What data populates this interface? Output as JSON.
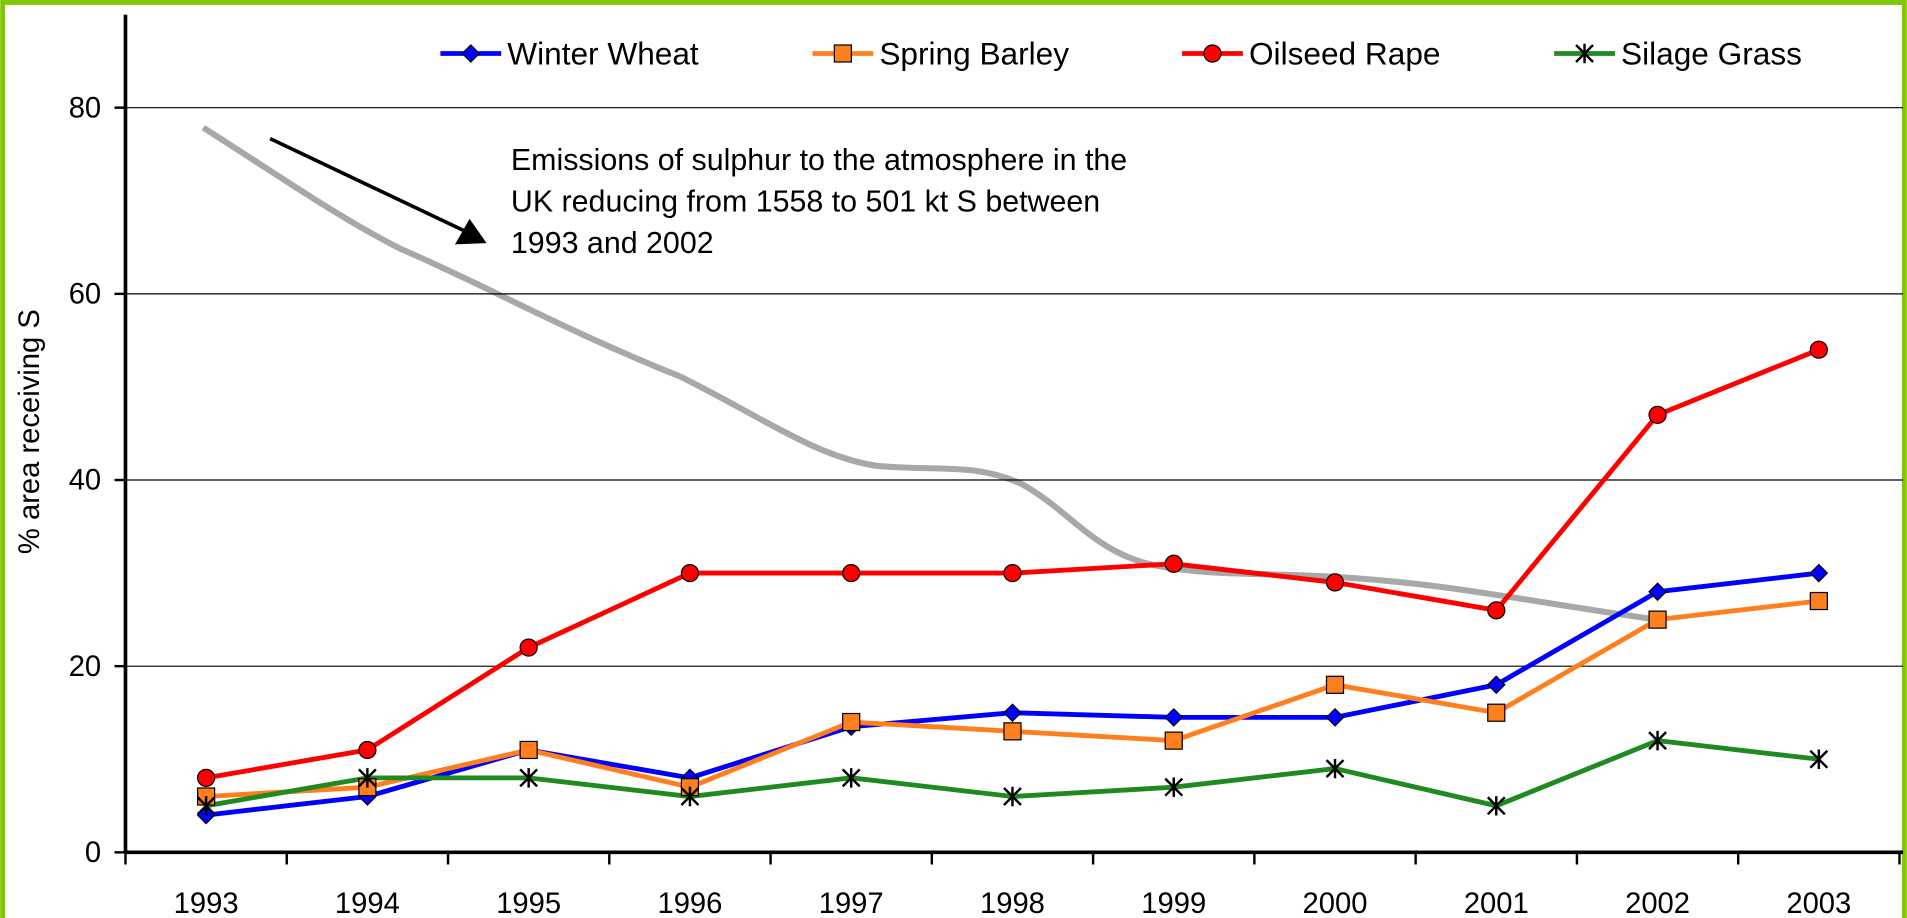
{
  "chart_data": {
    "type": "line",
    "y_label": "% area receiving S",
    "categories": [
      "1993",
      "1994",
      "1995",
      "1996",
      "1997",
      "1998",
      "1999",
      "2000",
      "2001",
      "2002",
      "2003"
    ],
    "series": [
      {
        "name": "Winter Wheat",
        "color": "#0000ff",
        "marker": "diamond",
        "values": [
          4,
          6,
          11,
          8,
          13.5,
          15,
          14.5,
          14.5,
          18,
          28,
          30
        ]
      },
      {
        "name": "Spring Barley",
        "color": "#ff7f1e",
        "marker": "square",
        "values": [
          6,
          7,
          11,
          7,
          14,
          13,
          12,
          18,
          15,
          25,
          27
        ]
      },
      {
        "name": "Oilseed Rape",
        "color": "#ff0000",
        "marker": "circle",
        "values": [
          8,
          11,
          22,
          30,
          30,
          30,
          31,
          29,
          26,
          47,
          54
        ]
      },
      {
        "name": "Silage Grass",
        "color": "#1f8a1f",
        "marker": "star",
        "values": [
          5,
          8,
          8,
          6,
          8,
          6,
          7,
          9,
          5,
          12,
          10
        ]
      }
    ],
    "annotation": [
      "Emissions of sulphur to the atmosphere in the",
      "UK reducing from 1558 to 501 kt S between",
      "1993 and 2002"
    ],
    "ylim": [
      0,
      90
    ],
    "yticks": [
      0,
      20,
      40,
      60,
      80
    ],
    "grid": true,
    "legend": "top"
  }
}
